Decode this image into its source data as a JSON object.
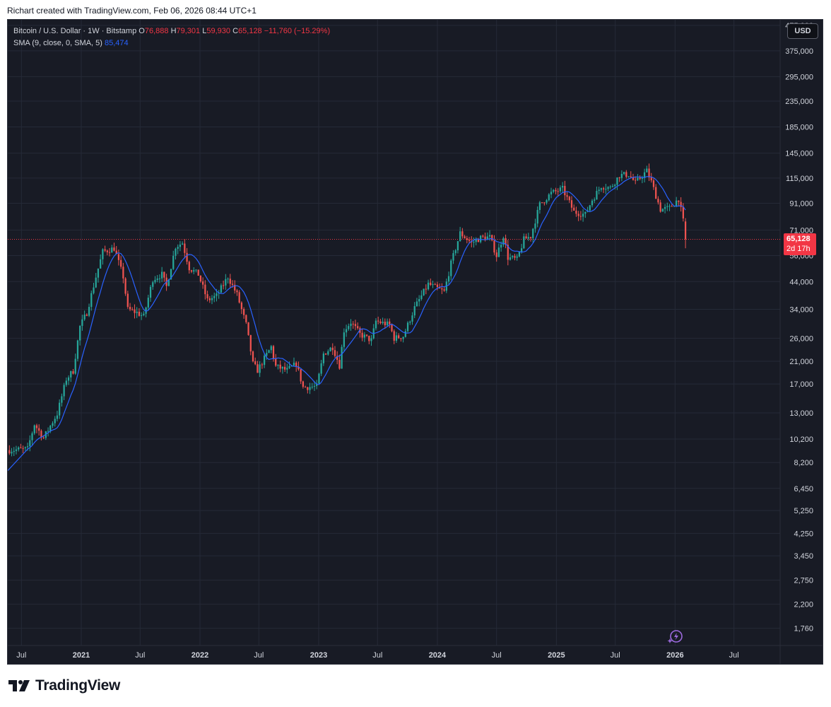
{
  "credit": "Richart created with TradingView.com, Feb 06, 2026 08:44 UTC+1",
  "legend": {
    "symbol": "Bitcoin / U.S. Dollar · 1W · Bitstamp",
    "o_label": "O",
    "o_value": "76,888",
    "h_label": "H",
    "h_value": "79,301",
    "l_label": "L",
    "l_value": "59,930",
    "c_label": "C",
    "c_value": "65,128",
    "change": "−11,760 (−15.29%)",
    "sma_label": "SMA (9, close, 0, SMA, 5)",
    "sma_value": "85,474"
  },
  "currency_button": "USD",
  "price_tag": {
    "value": "65,128",
    "countdown": "2d 17h"
  },
  "footer": {
    "brand": "TradingView"
  },
  "colors": {
    "up": "#26a69a",
    "down": "#ef5350",
    "sma": "#2962ff",
    "grid": "#252a37",
    "text": "#d1d4dc",
    "price_line": "#f23645"
  },
  "chart_data": {
    "type": "candlestick",
    "title": "Bitcoin / U.S. Dollar · 1W · Bitstamp",
    "timeframe": "1W",
    "y_scale": "log",
    "ylim": [
      1500,
      500000
    ],
    "xlim": [
      "2020-05-20",
      "2026-11-20"
    ],
    "y_ticks": [
      {
        "v": 475000,
        "l": "475,000"
      },
      {
        "v": 375000,
        "l": "375,000"
      },
      {
        "v": 295000,
        "l": "295,000"
      },
      {
        "v": 235000,
        "l": "235,000"
      },
      {
        "v": 185000,
        "l": "185,000"
      },
      {
        "v": 145000,
        "l": "145,000"
      },
      {
        "v": 115000,
        "l": "115,000"
      },
      {
        "v": 91000,
        "l": "91,000"
      },
      {
        "v": 71000,
        "l": "71,000"
      },
      {
        "v": 56000,
        "l": "56,000"
      },
      {
        "v": 44000,
        "l": "44,000"
      },
      {
        "v": 34000,
        "l": "34,000"
      },
      {
        "v": 26000,
        "l": "26,000"
      },
      {
        "v": 21000,
        "l": "21,000"
      },
      {
        "v": 17000,
        "l": "17,000"
      },
      {
        "v": 13000,
        "l": "13,000"
      },
      {
        "v": 10200,
        "l": "10,200"
      },
      {
        "v": 8200,
        "l": "8,200"
      },
      {
        "v": 6450,
        "l": "6,450"
      },
      {
        "v": 5250,
        "l": "5,250"
      },
      {
        "v": 4250,
        "l": "4,250"
      },
      {
        "v": 3450,
        "l": "3,450"
      },
      {
        "v": 2750,
        "l": "2,750"
      },
      {
        "v": 2200,
        "l": "2,200"
      },
      {
        "v": 1760,
        "l": "1,760"
      }
    ],
    "x_ticks": [
      {
        "d": "2020-07-01",
        "l": "Jul",
        "bold": false
      },
      {
        "d": "2021-01-01",
        "l": "2021",
        "bold": true
      },
      {
        "d": "2021-07-01",
        "l": "Jul",
        "bold": false
      },
      {
        "d": "2022-01-01",
        "l": "2022",
        "bold": true
      },
      {
        "d": "2022-07-01",
        "l": "Jul",
        "bold": false
      },
      {
        "d": "2023-01-01",
        "l": "2023",
        "bold": true
      },
      {
        "d": "2023-07-01",
        "l": "Jul",
        "bold": false
      },
      {
        "d": "2024-01-01",
        "l": "2024",
        "bold": true
      },
      {
        "d": "2024-07-01",
        "l": "Jul",
        "bold": false
      },
      {
        "d": "2025-01-01",
        "l": "2025",
        "bold": true
      },
      {
        "d": "2025-07-01",
        "l": "Jul",
        "bold": false
      },
      {
        "d": "2026-01-01",
        "l": "2026",
        "bold": true
      },
      {
        "d": "2026-07-01",
        "l": "Jul",
        "bold": false
      }
    ],
    "current_price": 65128,
    "close_path": [
      [
        "2020-05-25",
        9200
      ],
      [
        "2020-07-20",
        9300
      ],
      [
        "2020-08-10",
        11700
      ],
      [
        "2020-09-07",
        10300
      ],
      [
        "2020-10-19",
        12900
      ],
      [
        "2020-11-16",
        17800
      ],
      [
        "2020-12-07",
        19200
      ],
      [
        "2020-12-28",
        29000
      ],
      [
        "2021-01-18",
        33000
      ],
      [
        "2021-02-15",
        46000
      ],
      [
        "2021-03-08",
        58000
      ],
      [
        "2021-04-12",
        60000
      ],
      [
        "2021-05-10",
        46000
      ],
      [
        "2021-05-24",
        34000
      ],
      [
        "2021-06-21",
        33000
      ],
      [
        "2021-07-12",
        31800
      ],
      [
        "2021-08-09",
        45000
      ],
      [
        "2021-09-06",
        47000
      ],
      [
        "2021-09-20",
        42000
      ],
      [
        "2021-10-18",
        61000
      ],
      [
        "2021-11-08",
        63000
      ],
      [
        "2021-11-29",
        50000
      ],
      [
        "2021-12-27",
        47000
      ],
      [
        "2022-01-24",
        37000
      ],
      [
        "2022-02-21",
        38500
      ],
      [
        "2022-03-28",
        46000
      ],
      [
        "2022-04-25",
        39000
      ],
      [
        "2022-05-23",
        29500
      ],
      [
        "2022-06-13",
        20500
      ],
      [
        "2022-06-27",
        19300
      ],
      [
        "2022-08-08",
        24000
      ],
      [
        "2022-08-22",
        20000
      ],
      [
        "2022-09-26",
        19300
      ],
      [
        "2022-10-24",
        20500
      ],
      [
        "2022-11-14",
        16500
      ],
      [
        "2022-12-26",
        16600
      ],
      [
        "2023-01-16",
        22500
      ],
      [
        "2023-02-13",
        24000
      ],
      [
        "2023-03-06",
        20200
      ],
      [
        "2023-03-20",
        28000
      ],
      [
        "2023-04-10",
        30200
      ],
      [
        "2023-05-08",
        27000
      ],
      [
        "2023-06-12",
        25500
      ],
      [
        "2023-06-26",
        30500
      ],
      [
        "2023-08-07",
        29400
      ],
      [
        "2023-08-21",
        26000
      ],
      [
        "2023-09-18",
        26500
      ],
      [
        "2023-10-23",
        34500
      ],
      [
        "2023-12-04",
        43000
      ],
      [
        "2024-01-22",
        40000
      ],
      [
        "2024-02-12",
        52000
      ],
      [
        "2024-03-11",
        69000
      ],
      [
        "2024-04-15",
        63000
      ],
      [
        "2024-05-13",
        66000
      ],
      [
        "2024-06-10",
        66500
      ],
      [
        "2024-07-01",
        56000
      ],
      [
        "2024-07-22",
        67500
      ],
      [
        "2024-08-05",
        55000
      ],
      [
        "2024-09-02",
        54000
      ],
      [
        "2024-09-23",
        65000
      ],
      [
        "2024-10-14",
        67000
      ],
      [
        "2024-11-11",
        90000
      ],
      [
        "2024-12-16",
        100000
      ],
      [
        "2025-01-20",
        104000
      ],
      [
        "2025-02-24",
        84000
      ],
      [
        "2025-03-31",
        82000
      ],
      [
        "2025-04-21",
        94000
      ],
      [
        "2025-05-19",
        107000
      ],
      [
        "2025-06-16",
        105000
      ],
      [
        "2025-07-14",
        118000
      ],
      [
        "2025-08-11",
        119000
      ],
      [
        "2025-09-01",
        110000
      ],
      [
        "2025-10-06",
        123000
      ],
      [
        "2025-10-20",
        111000
      ],
      [
        "2025-11-17",
        86000
      ],
      [
        "2025-12-15",
        87000
      ],
      [
        "2026-01-12",
        95000
      ],
      [
        "2026-01-26",
        77000
      ],
      [
        "2026-02-02",
        65128
      ]
    ],
    "last_candle": {
      "date": "2026-02-02",
      "open": 76888,
      "high": 79301,
      "low": 59930,
      "close": 65128
    },
    "sma": {
      "name": "SMA (9, close, 0, SMA, 5)",
      "length": 9,
      "last": 85474
    }
  }
}
